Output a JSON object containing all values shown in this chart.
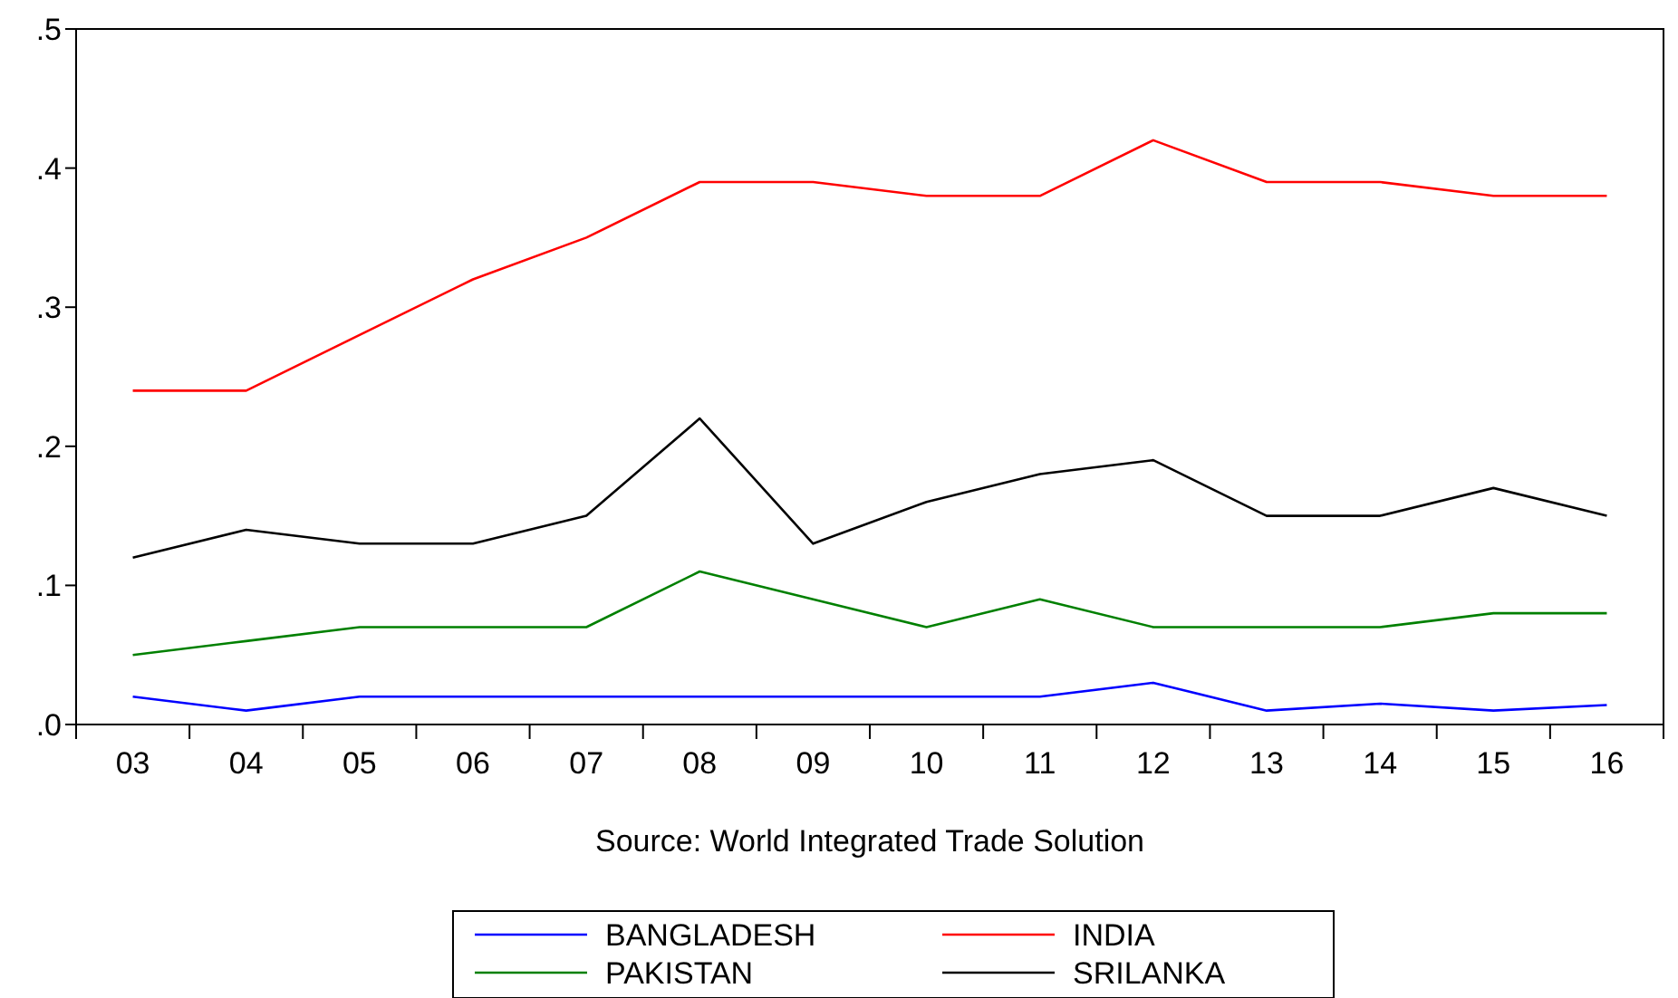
{
  "chart_data": {
    "type": "line",
    "annotations": [
      "Source: World Integrated Trade Solution"
    ],
    "categories": [
      "03",
      "04",
      "05",
      "06",
      "07",
      "08",
      "09",
      "10",
      "11",
      "12",
      "13",
      "14",
      "15",
      "16"
    ],
    "series": [
      {
        "name": "BANGLADESH",
        "color": "#0000ff",
        "values": [
          0.02,
          0.01,
          0.02,
          0.02,
          0.02,
          0.02,
          0.02,
          0.02,
          0.02,
          0.03,
          0.01,
          0.015,
          0.01,
          0.014
        ]
      },
      {
        "name": "INDIA",
        "color": "#ff0000",
        "values": [
          0.24,
          0.24,
          0.28,
          0.32,
          0.35,
          0.39,
          0.39,
          0.38,
          0.38,
          0.42,
          0.39,
          0.39,
          0.38,
          0.38
        ]
      },
      {
        "name": "PAKISTAN",
        "color": "#008000",
        "values": [
          0.05,
          0.06,
          0.07,
          0.07,
          0.07,
          0.11,
          0.09,
          0.07,
          0.09,
          0.07,
          0.07,
          0.07,
          0.08,
          0.08
        ]
      },
      {
        "name": "SRILANKA",
        "color": "#000000",
        "values": [
          0.12,
          0.14,
          0.13,
          0.13,
          0.15,
          0.22,
          0.13,
          0.16,
          0.18,
          0.19,
          0.15,
          0.15,
          0.17,
          0.15
        ]
      }
    ],
    "ylim": [
      0,
      0.5
    ],
    "yticks": [
      {
        "value": 0,
        "label": ".0"
      },
      {
        "value": 0.1,
        "label": ".1"
      },
      {
        "value": 0.2,
        "label": ".2"
      },
      {
        "value": 0.3,
        "label": ".3"
      },
      {
        "value": 0.4,
        "label": ".4"
      },
      {
        "value": 0.5,
        "label": ".5"
      }
    ],
    "grid": false,
    "legend": "bottom",
    "marker": "none",
    "line_style": "solid"
  }
}
